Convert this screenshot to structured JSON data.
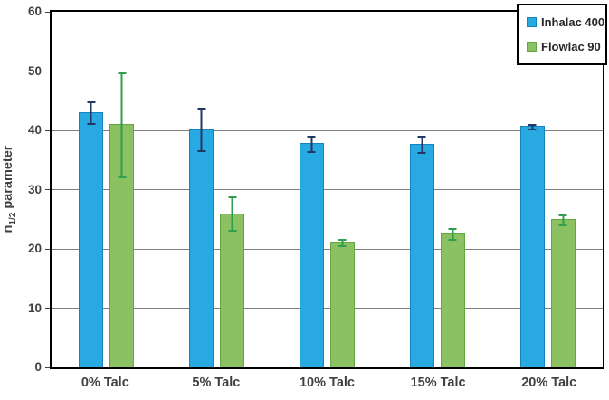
{
  "chart_data": {
    "type": "bar",
    "title": "",
    "categories": [
      "0% Talc",
      "5% Talc",
      "10% Talc",
      "15% Talc",
      "20% Talc"
    ],
    "series": [
      {
        "name": "Inhalac 400",
        "values": [
          43.0,
          40.2,
          37.8,
          37.7,
          40.7
        ],
        "errors": [
          2.0,
          3.7,
          1.5,
          1.5,
          0.5
        ],
        "color": "#29A9E1",
        "border_color": "#1683BC",
        "error_color": "#1F3864"
      },
      {
        "name": "Flowlac 90",
        "values": [
          41.0,
          26.0,
          21.2,
          22.6,
          25.0
        ],
        "errors": [
          9.0,
          3.0,
          0.7,
          1.0,
          1.0
        ],
        "color": "#8CC163",
        "border_color": "#64A63F",
        "error_color": "#2F9E4E"
      }
    ],
    "xlabel": "",
    "ylabel": "n1/2 parameter",
    "ylabel_parts": {
      "base": "n",
      "sub": "1/2",
      "rest": " parameter"
    },
    "ylim": [
      0,
      60
    ],
    "yticks": [
      0,
      10,
      20,
      30,
      40,
      50,
      60
    ],
    "grid": true,
    "legend_position": "top-right",
    "error_bars": true
  },
  "colors": {
    "plot_border": "#000000",
    "gridline": "#7f7f7f",
    "axis_text": "#404040",
    "legend_border": "#000000",
    "legend_text": "#262626",
    "background": "#ffffff"
  }
}
